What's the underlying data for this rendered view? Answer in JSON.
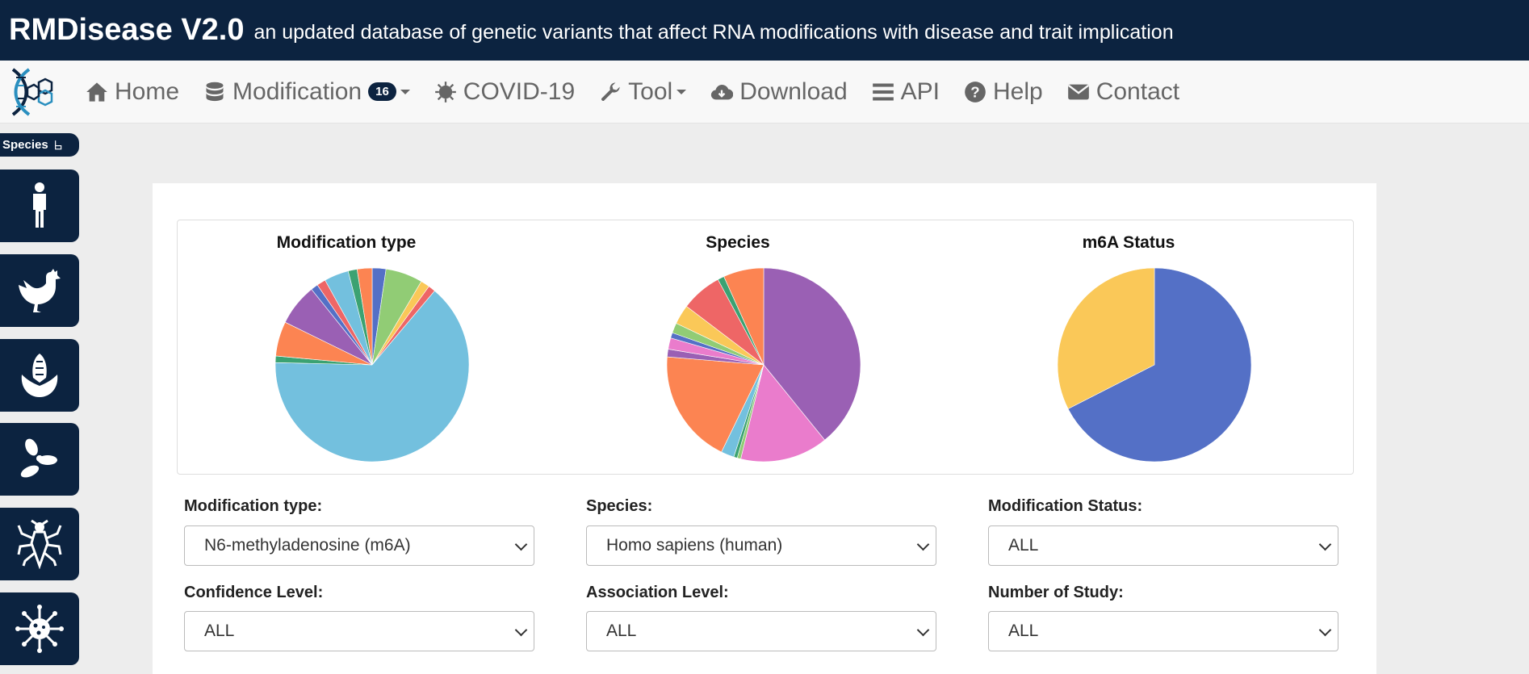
{
  "header": {
    "brand": "RMDisease V2.0",
    "tagline": "an updated database of genetic variants that affect RNA modifications with disease and trait implication"
  },
  "nav": {
    "items": [
      {
        "label": "Home",
        "icon": "home-icon"
      },
      {
        "label": "Modification",
        "icon": "database-icon",
        "badge": "16",
        "dropdown": true
      },
      {
        "label": "COVID-19",
        "icon": "virus-icon"
      },
      {
        "label": "Tool",
        "icon": "wrench-icon",
        "dropdown": true
      },
      {
        "label": "Download",
        "icon": "cloud-download-icon"
      },
      {
        "label": "API",
        "icon": "list-icon"
      },
      {
        "label": "Help",
        "icon": "question-circle-icon"
      },
      {
        "label": "Contact",
        "icon": "envelope-icon"
      }
    ]
  },
  "sidebar": {
    "tab_label": "Species",
    "tab_icon": "hand-pointer-icon",
    "buttons": [
      "human-icon",
      "chicken-icon",
      "corn-icon",
      "yeast-icon",
      "insect-icon",
      "virus-icon"
    ]
  },
  "charts": {
    "modification_title": "Modification type",
    "species_title": "Species",
    "status_title": "m6A Status"
  },
  "chart_data": [
    {
      "type": "pie",
      "title": "Modification type",
      "slices": [
        {
          "color": "#5470c6",
          "value": 2.3
        },
        {
          "color": "#91cc75",
          "value": 6.2
        },
        {
          "color": "#fac858",
          "value": 1.5
        },
        {
          "color": "#ee6666",
          "value": 1.2
        },
        {
          "color": "#73c0de",
          "value": 64.4
        },
        {
          "color": "#3ba272",
          "value": 1.1
        },
        {
          "color": "#fc8452",
          "value": 5.8
        },
        {
          "color": "#9a60b4",
          "value": 7.0
        },
        {
          "color": "#5470c6",
          "value": 1.2
        },
        {
          "color": "#ee6666",
          "value": 1.5
        },
        {
          "color": "#73c0de",
          "value": 4.1
        },
        {
          "color": "#3ba272",
          "value": 1.5
        },
        {
          "color": "#fc8452",
          "value": 2.5
        }
      ]
    },
    {
      "type": "pie",
      "title": "Species",
      "slices": [
        {
          "color": "#9a60b4",
          "value": 39.5
        },
        {
          "color": "#ea7ccc",
          "value": 14.8
        },
        {
          "color": "#91cc75",
          "value": 0.6
        },
        {
          "color": "#3ba272",
          "value": 0.6
        },
        {
          "color": "#73c0de",
          "value": 2.2
        },
        {
          "color": "#fc8452",
          "value": 19.3
        },
        {
          "color": "#9a60b4",
          "value": 1.3
        },
        {
          "color": "#ea7ccc",
          "value": 1.9
        },
        {
          "color": "#5470c6",
          "value": 0.9
        },
        {
          "color": "#91cc75",
          "value": 1.7
        },
        {
          "color": "#fac858",
          "value": 3.3
        },
        {
          "color": "#ee6666",
          "value": 6.9
        },
        {
          "color": "#3ba272",
          "value": 1.1
        },
        {
          "color": "#fc8452",
          "value": 6.8
        }
      ]
    },
    {
      "type": "pie",
      "title": "m6A Status",
      "slices": [
        {
          "color": "#5470c6",
          "value": 67.5
        },
        {
          "color": "#fac858",
          "value": 32.5
        }
      ]
    }
  ],
  "filters": {
    "modification_type": {
      "label": "Modification type:",
      "value": "N6-methyladenosine (m6A)"
    },
    "species": {
      "label": "Species:",
      "value": "Homo sapiens (human)"
    },
    "modification_status": {
      "label": "Modification Status:",
      "value": "ALL"
    },
    "confidence_level": {
      "label": "Confidence Level:",
      "value": "ALL"
    },
    "association_level": {
      "label": "Association Level:",
      "value": "ALL"
    },
    "number_of_study": {
      "label": "Number of Study:",
      "value": "ALL"
    }
  }
}
